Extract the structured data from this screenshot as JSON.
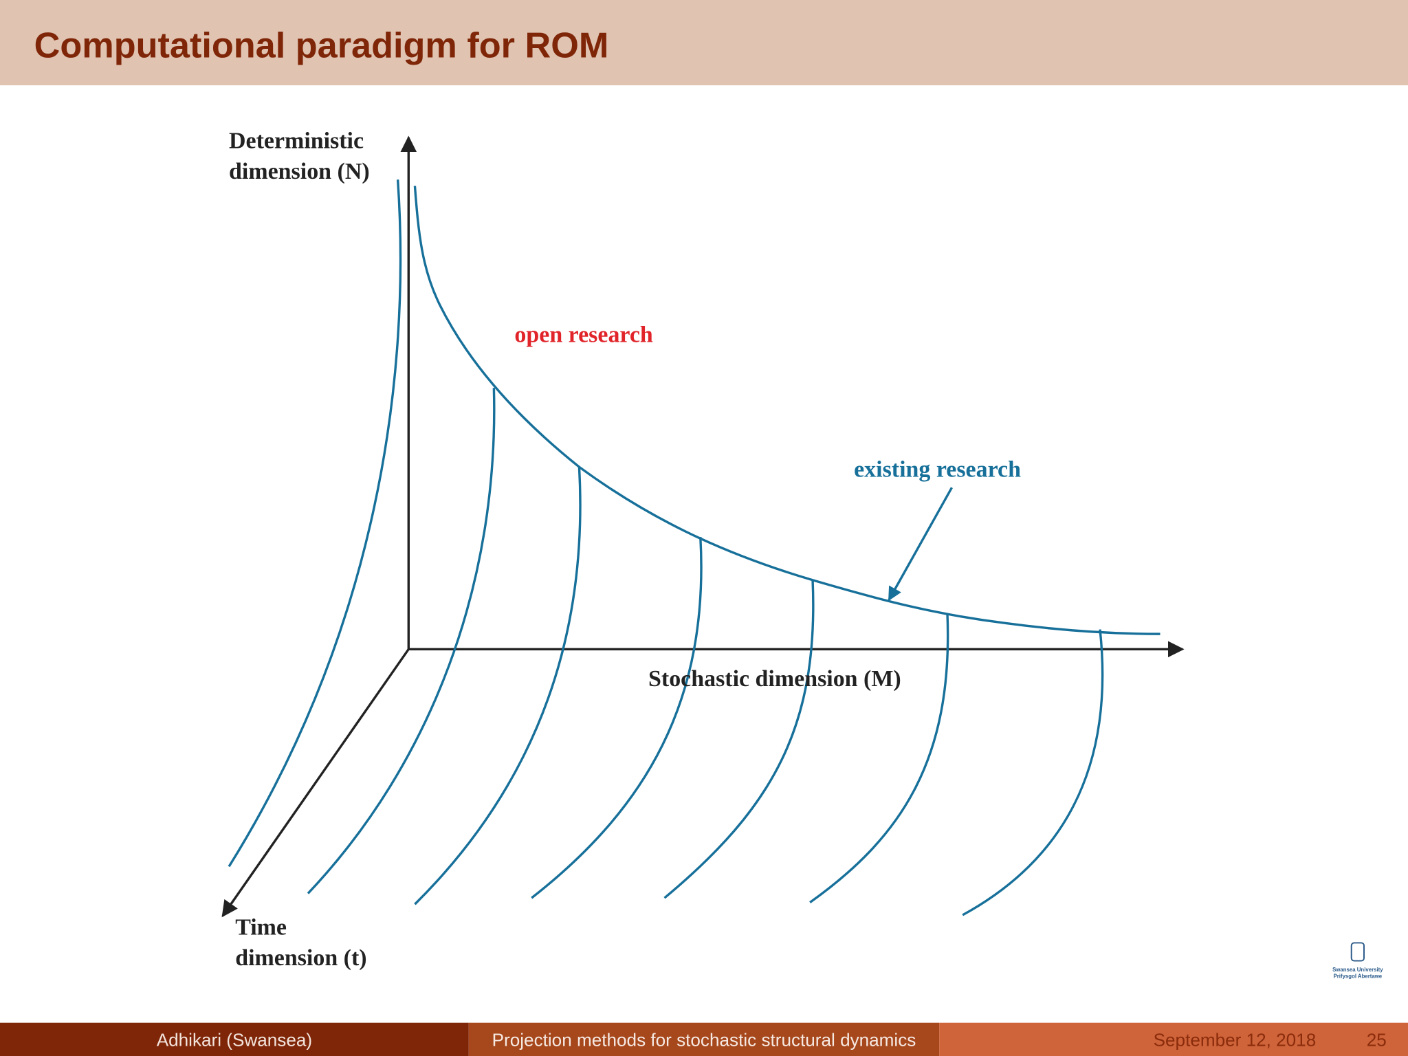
{
  "header": {
    "title": "Computational paradigm for ROM"
  },
  "diagram": {
    "y_axis_label": [
      "Deterministic",
      "dimension (N)"
    ],
    "x_axis_label": "Stochastic dimension (M)",
    "t_axis_label": [
      "Time",
      "dimension (t)"
    ],
    "open_label": "open research",
    "existing_label": "existing research"
  },
  "logo": {
    "lines": [
      "Swansea University",
      "Prifysgol Abertawe"
    ]
  },
  "footer": {
    "author": "Adhikari  (Swansea)",
    "talk": "Projection methods for stochastic structural dynamics",
    "date": "September 12, 2018",
    "page": "25"
  }
}
